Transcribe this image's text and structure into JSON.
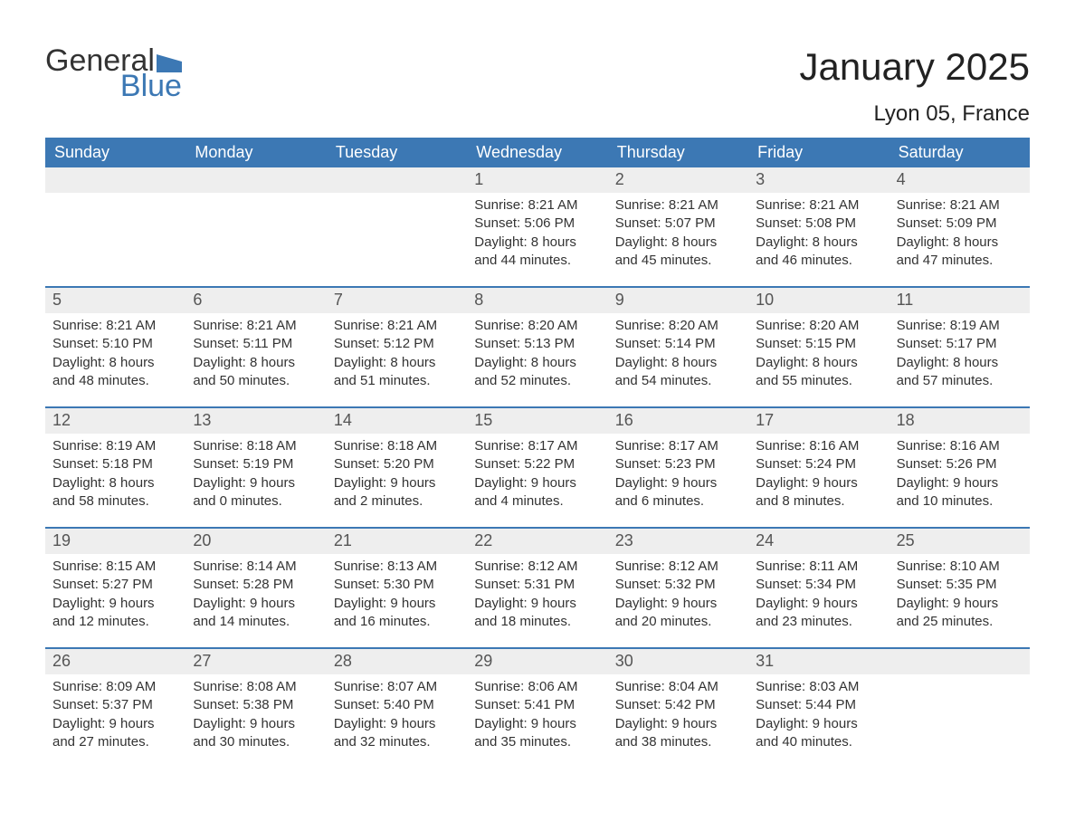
{
  "logo": {
    "text_general": "General",
    "text_blue": "Blue",
    "flag_color": "#3c78b4",
    "text_color_general": "#333333",
    "text_color_blue": "#3c78b4"
  },
  "title": {
    "month": "January 2025",
    "location": "Lyon 05, France",
    "month_fontsize": 42,
    "location_fontsize": 24
  },
  "colors": {
    "header_bg": "#3c78b4",
    "header_text": "#ffffff",
    "daynum_bg": "#eeeeee",
    "daynum_text": "#555555",
    "body_text": "#333333",
    "border": "#3c78b4",
    "page_bg": "#ffffff"
  },
  "weekdays": [
    "Sunday",
    "Monday",
    "Tuesday",
    "Wednesday",
    "Thursday",
    "Friday",
    "Saturday"
  ],
  "weeks": [
    [
      null,
      null,
      null,
      {
        "day": "1",
        "sunrise": "Sunrise: 8:21 AM",
        "sunset": "Sunset: 5:06 PM",
        "daylight": "Daylight: 8 hours and 44 minutes."
      },
      {
        "day": "2",
        "sunrise": "Sunrise: 8:21 AM",
        "sunset": "Sunset: 5:07 PM",
        "daylight": "Daylight: 8 hours and 45 minutes."
      },
      {
        "day": "3",
        "sunrise": "Sunrise: 8:21 AM",
        "sunset": "Sunset: 5:08 PM",
        "daylight": "Daylight: 8 hours and 46 minutes."
      },
      {
        "day": "4",
        "sunrise": "Sunrise: 8:21 AM",
        "sunset": "Sunset: 5:09 PM",
        "daylight": "Daylight: 8 hours and 47 minutes."
      }
    ],
    [
      {
        "day": "5",
        "sunrise": "Sunrise: 8:21 AM",
        "sunset": "Sunset: 5:10 PM",
        "daylight": "Daylight: 8 hours and 48 minutes."
      },
      {
        "day": "6",
        "sunrise": "Sunrise: 8:21 AM",
        "sunset": "Sunset: 5:11 PM",
        "daylight": "Daylight: 8 hours and 50 minutes."
      },
      {
        "day": "7",
        "sunrise": "Sunrise: 8:21 AM",
        "sunset": "Sunset: 5:12 PM",
        "daylight": "Daylight: 8 hours and 51 minutes."
      },
      {
        "day": "8",
        "sunrise": "Sunrise: 8:20 AM",
        "sunset": "Sunset: 5:13 PM",
        "daylight": "Daylight: 8 hours and 52 minutes."
      },
      {
        "day": "9",
        "sunrise": "Sunrise: 8:20 AM",
        "sunset": "Sunset: 5:14 PM",
        "daylight": "Daylight: 8 hours and 54 minutes."
      },
      {
        "day": "10",
        "sunrise": "Sunrise: 8:20 AM",
        "sunset": "Sunset: 5:15 PM",
        "daylight": "Daylight: 8 hours and 55 minutes."
      },
      {
        "day": "11",
        "sunrise": "Sunrise: 8:19 AM",
        "sunset": "Sunset: 5:17 PM",
        "daylight": "Daylight: 8 hours and 57 minutes."
      }
    ],
    [
      {
        "day": "12",
        "sunrise": "Sunrise: 8:19 AM",
        "sunset": "Sunset: 5:18 PM",
        "daylight": "Daylight: 8 hours and 58 minutes."
      },
      {
        "day": "13",
        "sunrise": "Sunrise: 8:18 AM",
        "sunset": "Sunset: 5:19 PM",
        "daylight": "Daylight: 9 hours and 0 minutes."
      },
      {
        "day": "14",
        "sunrise": "Sunrise: 8:18 AM",
        "sunset": "Sunset: 5:20 PM",
        "daylight": "Daylight: 9 hours and 2 minutes."
      },
      {
        "day": "15",
        "sunrise": "Sunrise: 8:17 AM",
        "sunset": "Sunset: 5:22 PM",
        "daylight": "Daylight: 9 hours and 4 minutes."
      },
      {
        "day": "16",
        "sunrise": "Sunrise: 8:17 AM",
        "sunset": "Sunset: 5:23 PM",
        "daylight": "Daylight: 9 hours and 6 minutes."
      },
      {
        "day": "17",
        "sunrise": "Sunrise: 8:16 AM",
        "sunset": "Sunset: 5:24 PM",
        "daylight": "Daylight: 9 hours and 8 minutes."
      },
      {
        "day": "18",
        "sunrise": "Sunrise: 8:16 AM",
        "sunset": "Sunset: 5:26 PM",
        "daylight": "Daylight: 9 hours and 10 minutes."
      }
    ],
    [
      {
        "day": "19",
        "sunrise": "Sunrise: 8:15 AM",
        "sunset": "Sunset: 5:27 PM",
        "daylight": "Daylight: 9 hours and 12 minutes."
      },
      {
        "day": "20",
        "sunrise": "Sunrise: 8:14 AM",
        "sunset": "Sunset: 5:28 PM",
        "daylight": "Daylight: 9 hours and 14 minutes."
      },
      {
        "day": "21",
        "sunrise": "Sunrise: 8:13 AM",
        "sunset": "Sunset: 5:30 PM",
        "daylight": "Daylight: 9 hours and 16 minutes."
      },
      {
        "day": "22",
        "sunrise": "Sunrise: 8:12 AM",
        "sunset": "Sunset: 5:31 PM",
        "daylight": "Daylight: 9 hours and 18 minutes."
      },
      {
        "day": "23",
        "sunrise": "Sunrise: 8:12 AM",
        "sunset": "Sunset: 5:32 PM",
        "daylight": "Daylight: 9 hours and 20 minutes."
      },
      {
        "day": "24",
        "sunrise": "Sunrise: 8:11 AM",
        "sunset": "Sunset: 5:34 PM",
        "daylight": "Daylight: 9 hours and 23 minutes."
      },
      {
        "day": "25",
        "sunrise": "Sunrise: 8:10 AM",
        "sunset": "Sunset: 5:35 PM",
        "daylight": "Daylight: 9 hours and 25 minutes."
      }
    ],
    [
      {
        "day": "26",
        "sunrise": "Sunrise: 8:09 AM",
        "sunset": "Sunset: 5:37 PM",
        "daylight": "Daylight: 9 hours and 27 minutes."
      },
      {
        "day": "27",
        "sunrise": "Sunrise: 8:08 AM",
        "sunset": "Sunset: 5:38 PM",
        "daylight": "Daylight: 9 hours and 30 minutes."
      },
      {
        "day": "28",
        "sunrise": "Sunrise: 8:07 AM",
        "sunset": "Sunset: 5:40 PM",
        "daylight": "Daylight: 9 hours and 32 minutes."
      },
      {
        "day": "29",
        "sunrise": "Sunrise: 8:06 AM",
        "sunset": "Sunset: 5:41 PM",
        "daylight": "Daylight: 9 hours and 35 minutes."
      },
      {
        "day": "30",
        "sunrise": "Sunrise: 8:04 AM",
        "sunset": "Sunset: 5:42 PM",
        "daylight": "Daylight: 9 hours and 38 minutes."
      },
      {
        "day": "31",
        "sunrise": "Sunrise: 8:03 AM",
        "sunset": "Sunset: 5:44 PM",
        "daylight": "Daylight: 9 hours and 40 minutes."
      },
      null
    ]
  ]
}
